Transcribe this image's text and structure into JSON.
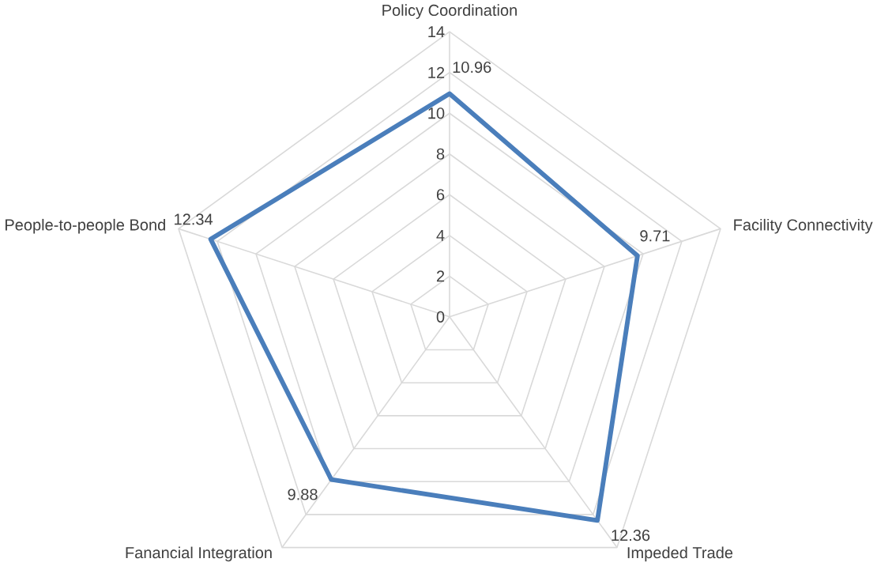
{
  "chart_data": {
    "type": "radar",
    "categories": [
      "Policy Coordination",
      "Facility Connectivity",
      "Impeded Trade",
      "Fanancial Integration",
      "People-to-people Bond"
    ],
    "series": [
      {
        "color": "#4a7ebb",
        "values": [
          10.96,
          9.71,
          12.36,
          9.88,
          12.34
        ]
      }
    ],
    "ylim": [
      0,
      14
    ],
    "yticks": [
      0,
      2,
      4,
      6,
      8,
      10,
      12,
      14
    ],
    "grid": true,
    "data_labels": true
  }
}
